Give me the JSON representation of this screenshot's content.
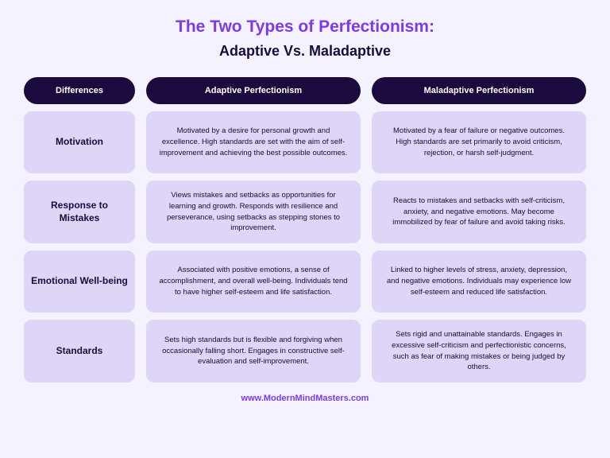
{
  "title": "The Two Types of Perfectionism:",
  "subtitle": "Adaptive Vs. Maladaptive",
  "colors": {
    "background": "#f5f2ff",
    "accent": "#7c3aed",
    "dark": "#1a0a3d",
    "cell_bg": "#dfd5f7"
  },
  "headers": {
    "col0": "Differences",
    "col1": "Adaptive Perfectionism",
    "col2": "Maladaptive Perfectionism"
  },
  "rows": [
    {
      "label": "Motivation",
      "adaptive": "Motivated by a desire for personal growth and excellence. High standards are set with the aim of self-improvement and achieving the best possible outcomes.",
      "maladaptive": "Motivated by a fear of failure or negative outcomes. High standards are set primarily to avoid criticism, rejection, or harsh self-judgment."
    },
    {
      "label": "Response to Mistakes",
      "adaptive": "Views mistakes and setbacks as opportunities for learning and growth. Responds with resilience and perseverance, using setbacks as stepping stones to improvement.",
      "maladaptive": "Reacts to mistakes and setbacks with self-criticism, anxiety, and negative emotions. May become immobilized by fear of failure and avoid taking risks."
    },
    {
      "label": "Emotional Well-being",
      "adaptive": "Associated with positive emotions, a sense of accomplishment, and overall well-being. Individuals tend to have higher self-esteem and life satisfaction.",
      "maladaptive": "Linked to higher levels of stress, anxiety, depression, and negative emotions. Individuals may experience low self-esteem and reduced life satisfaction."
    },
    {
      "label": "Standards",
      "adaptive": "Sets high standards but is flexible and forgiving when occasionally falling short. Engages in constructive self-evaluation and self-improvement.",
      "maladaptive": "Sets rigid and unattainable standards. Engages in excessive self-criticism and perfectionistic concerns, such as fear of making mistakes or being judged by others."
    }
  ],
  "footer": "www.ModernMindMasters.com"
}
